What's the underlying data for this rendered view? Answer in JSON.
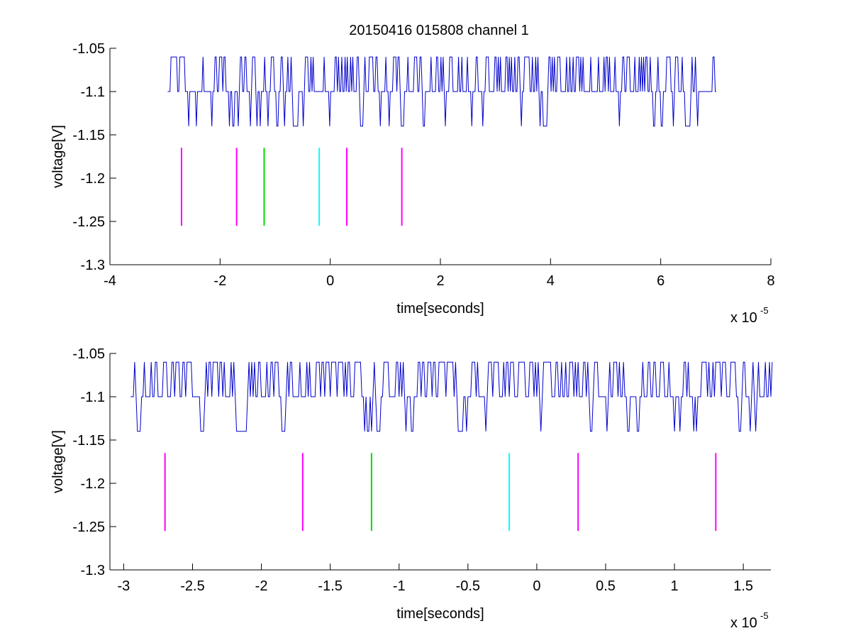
{
  "figure": {
    "title": "20150416 015808 channel 1",
    "background": "#ffffff",
    "trace_color": "#0000cc"
  },
  "chart_data": [
    {
      "type": "line",
      "title": "20150416 015808 channel 1",
      "xlabel": "time[seconds]",
      "ylabel": "voltage[V]",
      "x_exponent_label": "x 10",
      "x_exponent": "-5",
      "xlim": [
        -4,
        8
      ],
      "ylim": [
        -1.3,
        -1.05
      ],
      "xticks": [
        -4,
        -2,
        0,
        2,
        4,
        6,
        8
      ],
      "yticks": [
        -1.3,
        -1.25,
        -1.2,
        -1.15,
        -1.1,
        -1.05
      ],
      "xtick_labels": [
        "-4",
        "-2",
        "0",
        "2",
        "4",
        "6",
        "8"
      ],
      "ytick_labels": [
        "-1.3",
        "-1.25",
        "-1.2",
        "-1.15",
        "-1.1",
        "-1.05"
      ],
      "grid": false,
      "trace": {
        "color": "#0000cc",
        "x_start": -2.95,
        "x_end": 7.0,
        "levels": [
          -1.06,
          -1.1,
          -1.14
        ],
        "baseline": -1.1,
        "step": 0.02
      },
      "markers": [
        {
          "x": -2.7,
          "color": "#ff00ff",
          "y_range": [
            -1.255,
            -1.165
          ]
        },
        {
          "x": -1.7,
          "color": "#ff00ff",
          "y_range": [
            -1.255,
            -1.165
          ]
        },
        {
          "x": -1.2,
          "color": "#00dd00",
          "y_range": [
            -1.255,
            -1.165
          ]
        },
        {
          "x": -0.2,
          "color": "#00ffff",
          "y_range": [
            -1.255,
            -1.165
          ]
        },
        {
          "x": 0.3,
          "color": "#ff00ff",
          "y_range": [
            -1.255,
            -1.165
          ]
        },
        {
          "x": 1.3,
          "color": "#ff00ff",
          "y_range": [
            -1.255,
            -1.165
          ]
        }
      ]
    },
    {
      "type": "line",
      "title": "",
      "xlabel": "time[seconds]",
      "ylabel": "voltage[V]",
      "x_exponent_label": "x 10",
      "x_exponent": "-5",
      "xlim": [
        -3.1,
        1.7
      ],
      "ylim": [
        -1.3,
        -1.05
      ],
      "xticks": [
        -3,
        -2.5,
        -2,
        -1.5,
        -1,
        -0.5,
        0,
        0.5,
        1,
        1.5
      ],
      "yticks": [
        -1.3,
        -1.25,
        -1.2,
        -1.15,
        -1.1,
        -1.05
      ],
      "xtick_labels": [
        "-3",
        "-2.5",
        "-2",
        "-1.5",
        "-1",
        "-0.5",
        "0",
        "0.5",
        "1",
        "1.5"
      ],
      "ytick_labels": [
        "-1.3",
        "-1.25",
        "-1.2",
        "-1.15",
        "-1.1",
        "-1.05"
      ],
      "grid": false,
      "trace": {
        "color": "#0000cc",
        "x_start": -2.95,
        "x_end": 1.7,
        "levels": [
          -1.06,
          -1.1,
          -1.14
        ],
        "baseline": -1.1,
        "step": 0.02
      },
      "markers": [
        {
          "x": -2.7,
          "color": "#ff00ff",
          "y_range": [
            -1.255,
            -1.165
          ]
        },
        {
          "x": -1.7,
          "color": "#ff00ff",
          "y_range": [
            -1.255,
            -1.165
          ]
        },
        {
          "x": -1.2,
          "color": "#00dd00",
          "y_range": [
            -1.255,
            -1.165
          ]
        },
        {
          "x": -0.2,
          "color": "#00ffff",
          "y_range": [
            -1.255,
            -1.165
          ]
        },
        {
          "x": 0.3,
          "color": "#ff00ff",
          "y_range": [
            -1.255,
            -1.165
          ]
        },
        {
          "x": 1.3,
          "color": "#ff00ff",
          "y_range": [
            -1.255,
            -1.165
          ]
        }
      ]
    }
  ]
}
